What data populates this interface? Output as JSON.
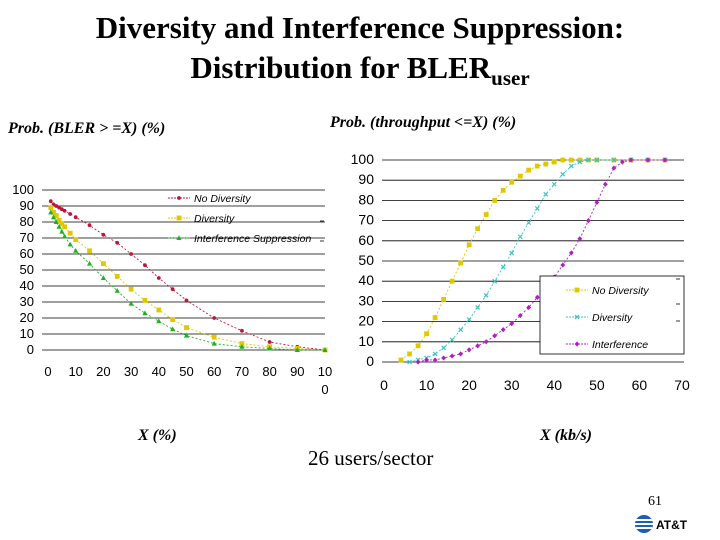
{
  "slide": {
    "title_line1": "Diversity and Interference Suppression:",
    "title_line2": "Distribution for BLER",
    "title_subscript": "user",
    "note": "26 users/sector",
    "page_number": "61",
    "logo_text": "AT&T"
  },
  "left_chart": {
    "ylabel": "Prob. (BLER > =X) (%)",
    "xlabel": "X (%)"
  },
  "right_chart": {
    "ylabel": "Prob. (throughput <=X) (%)",
    "xlabel": "X (kb/s)"
  },
  "chart_data": [
    {
      "type": "line",
      "ylabel": "Prob. (BLER > =X) (%)",
      "xlabel": "X (%)",
      "xlim": [
        0,
        100
      ],
      "ylim": [
        0,
        100
      ],
      "x_ticks": [
        "0",
        "10",
        "20",
        "30",
        "40",
        "50",
        "60",
        "70",
        "80",
        "90",
        "100"
      ],
      "y_ticks": [
        "0",
        "10",
        "20",
        "30",
        "40",
        "50",
        "60",
        "70",
        "80",
        "90",
        "100"
      ],
      "grid": "horizontal",
      "legend": "top-right",
      "series": [
        {
          "name": "No Diversity",
          "color": "#c0143c",
          "marker": "dot",
          "x": [
            1,
            2,
            3,
            4,
            5,
            6,
            8,
            10,
            15,
            20,
            25,
            30,
            35,
            40,
            45,
            50,
            60,
            70,
            80,
            90,
            100
          ],
          "y": [
            93,
            91,
            90,
            89,
            88,
            87,
            85,
            83,
            78,
            72,
            67,
            60,
            53,
            45,
            38,
            31,
            20,
            12,
            5,
            2,
            0
          ]
        },
        {
          "name": "Diversity",
          "color": "#e0c800",
          "marker": "square",
          "x": [
            1,
            2,
            3,
            4,
            5,
            6,
            8,
            10,
            15,
            20,
            25,
            30,
            35,
            40,
            45,
            50,
            60,
            70,
            80,
            90,
            100
          ],
          "y": [
            89,
            86,
            84,
            81,
            79,
            77,
            73,
            69,
            62,
            54,
            46,
            38,
            31,
            25,
            19,
            14,
            8,
            4,
            2,
            1,
            0
          ]
        },
        {
          "name": "Interference Suppression",
          "color": "#20b020",
          "marker": "triangle",
          "x": [
            1,
            2,
            3,
            4,
            5,
            6,
            8,
            10,
            15,
            20,
            25,
            30,
            35,
            40,
            45,
            50,
            60,
            70,
            80,
            90,
            100
          ],
          "y": [
            86,
            83,
            80,
            77,
            74,
            71,
            66,
            62,
            54,
            45,
            37,
            29,
            23,
            18,
            13,
            9,
            4,
            2,
            1,
            0,
            0
          ]
        }
      ]
    },
    {
      "type": "line",
      "ylabel": "Prob. (throughput <=X) (%)",
      "xlabel": "X (kb/s)",
      "xlim": [
        0,
        70
      ],
      "ylim": [
        0,
        100
      ],
      "x_ticks": [
        "0",
        "10",
        "20",
        "30",
        "40",
        "50",
        "60",
        "70"
      ],
      "y_ticks": [
        "0",
        "10",
        "20",
        "30",
        "40",
        "50",
        "60",
        "70",
        "80",
        "90",
        "100"
      ],
      "grid": "horizontal",
      "legend": "bottom-right",
      "series": [
        {
          "name": "No Diversity",
          "color": "#e0c800",
          "marker": "square",
          "x": [
            4,
            6,
            8,
            10,
            12,
            14,
            16,
            18,
            20,
            22,
            24,
            26,
            28,
            30,
            32,
            34,
            36,
            38,
            40,
            42,
            44,
            46,
            48,
            50,
            54,
            58,
            62,
            66
          ],
          "y": [
            1,
            4,
            8,
            14,
            22,
            31,
            40,
            49,
            58,
            66,
            73,
            80,
            85,
            89,
            92,
            95,
            97,
            98,
            99,
            100,
            100,
            100,
            100,
            100,
            100,
            100,
            100,
            100
          ]
        },
        {
          "name": "Diversity",
          "color": "#40c0c0",
          "marker": "x",
          "x": [
            6,
            8,
            10,
            12,
            14,
            16,
            18,
            20,
            22,
            24,
            26,
            28,
            30,
            32,
            34,
            36,
            38,
            40,
            42,
            44,
            46,
            48,
            50,
            54,
            58,
            62,
            66
          ],
          "y": [
            0,
            1,
            2,
            4,
            7,
            11,
            16,
            21,
            27,
            33,
            40,
            47,
            54,
            62,
            69,
            76,
            83,
            88,
            93,
            97,
            99,
            100,
            100,
            100,
            100,
            100,
            100
          ]
        },
        {
          "name": "Interference",
          "color": "#b020c0",
          "marker": "diamond",
          "x": [
            8,
            10,
            12,
            14,
            16,
            18,
            20,
            22,
            24,
            26,
            28,
            30,
            32,
            34,
            36,
            38,
            40,
            42,
            44,
            46,
            48,
            50,
            52,
            54,
            56,
            58,
            62,
            66
          ],
          "y": [
            0,
            1,
            1,
            2,
            3,
            4,
            6,
            8,
            10,
            13,
            16,
            19,
            23,
            27,
            32,
            37,
            42,
            48,
            54,
            61,
            70,
            79,
            88,
            96,
            99,
            100,
            100,
            100
          ]
        }
      ]
    }
  ]
}
